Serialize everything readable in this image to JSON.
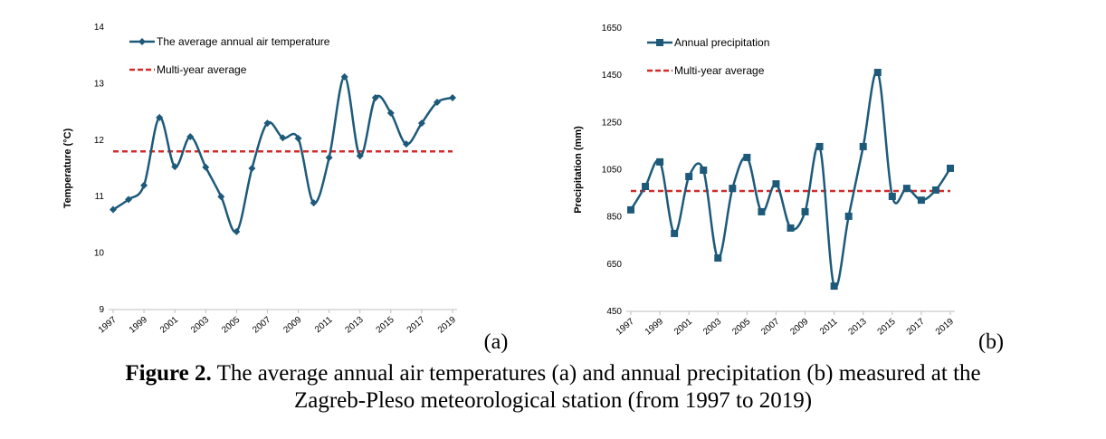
{
  "chart_data": [
    {
      "type": "line",
      "panel_label": "(a)",
      "y_label": "Temperature (°C)",
      "x": [
        1997,
        1998,
        1999,
        2000,
        2001,
        2002,
        2003,
        2004,
        2005,
        2006,
        2007,
        2008,
        2009,
        2010,
        2011,
        2012,
        2013,
        2014,
        2015,
        2016,
        2017,
        2018,
        2019
      ],
      "xlim": [
        1997,
        2019
      ],
      "xticks": [
        1997,
        1999,
        2001,
        2003,
        2005,
        2007,
        2009,
        2011,
        2013,
        2015,
        2017,
        2019
      ],
      "ylim": [
        9,
        14
      ],
      "yticks": [
        9,
        10,
        11,
        12,
        13,
        14
      ],
      "marker": "diamond",
      "smooth": true,
      "series": [
        {
          "name": "The average annual air temperature",
          "color": "#1d5a7a",
          "values": [
            10.77,
            10.95,
            11.2,
            12.4,
            11.53,
            12.06,
            11.52,
            11.0,
            10.38,
            11.5,
            12.3,
            12.04,
            12.03,
            10.89,
            11.69,
            13.12,
            11.72,
            12.75,
            12.48,
            11.93,
            12.3,
            12.67,
            12.75
          ]
        }
      ],
      "average": {
        "name": "Multi-year average",
        "value": 11.8,
        "color": "#d42a2a"
      }
    },
    {
      "type": "line",
      "panel_label": "(b)",
      "y_label": "Precipitation (mm)",
      "x": [
        1997,
        1998,
        1999,
        2000,
        2001,
        2002,
        2003,
        2004,
        2005,
        2006,
        2007,
        2008,
        2009,
        2010,
        2011,
        2012,
        2013,
        2014,
        2015,
        2016,
        2017,
        2018,
        2019
      ],
      "xlim": [
        1997,
        2019
      ],
      "xticks": [
        1997,
        1999,
        2001,
        2003,
        2005,
        2007,
        2009,
        2011,
        2013,
        2015,
        2017,
        2019
      ],
      "ylim": [
        450,
        1650
      ],
      "yticks": [
        450,
        650,
        850,
        1050,
        1250,
        1450,
        1650
      ],
      "marker": "square",
      "smooth": true,
      "series": [
        {
          "name": "Annual precipitation",
          "color": "#1d5a7a",
          "values": [
            880,
            979,
            1083,
            780,
            1021,
            1048,
            676,
            971,
            1102,
            872,
            990,
            803,
            872,
            1148,
            557,
            853,
            1148,
            1462,
            937,
            971,
            921,
            964,
            1056
          ]
        }
      ],
      "average": {
        "name": "Multi-year average",
        "value": 960,
        "color": "#d42a2a"
      }
    }
  ],
  "caption": {
    "label": "Figure 2.",
    "line1": "The average annual air temperatures (a) and annual precipitation (b) measured at the",
    "line2": "Zagreb-Pleso meteorological station (from 1997 to 2019)"
  }
}
